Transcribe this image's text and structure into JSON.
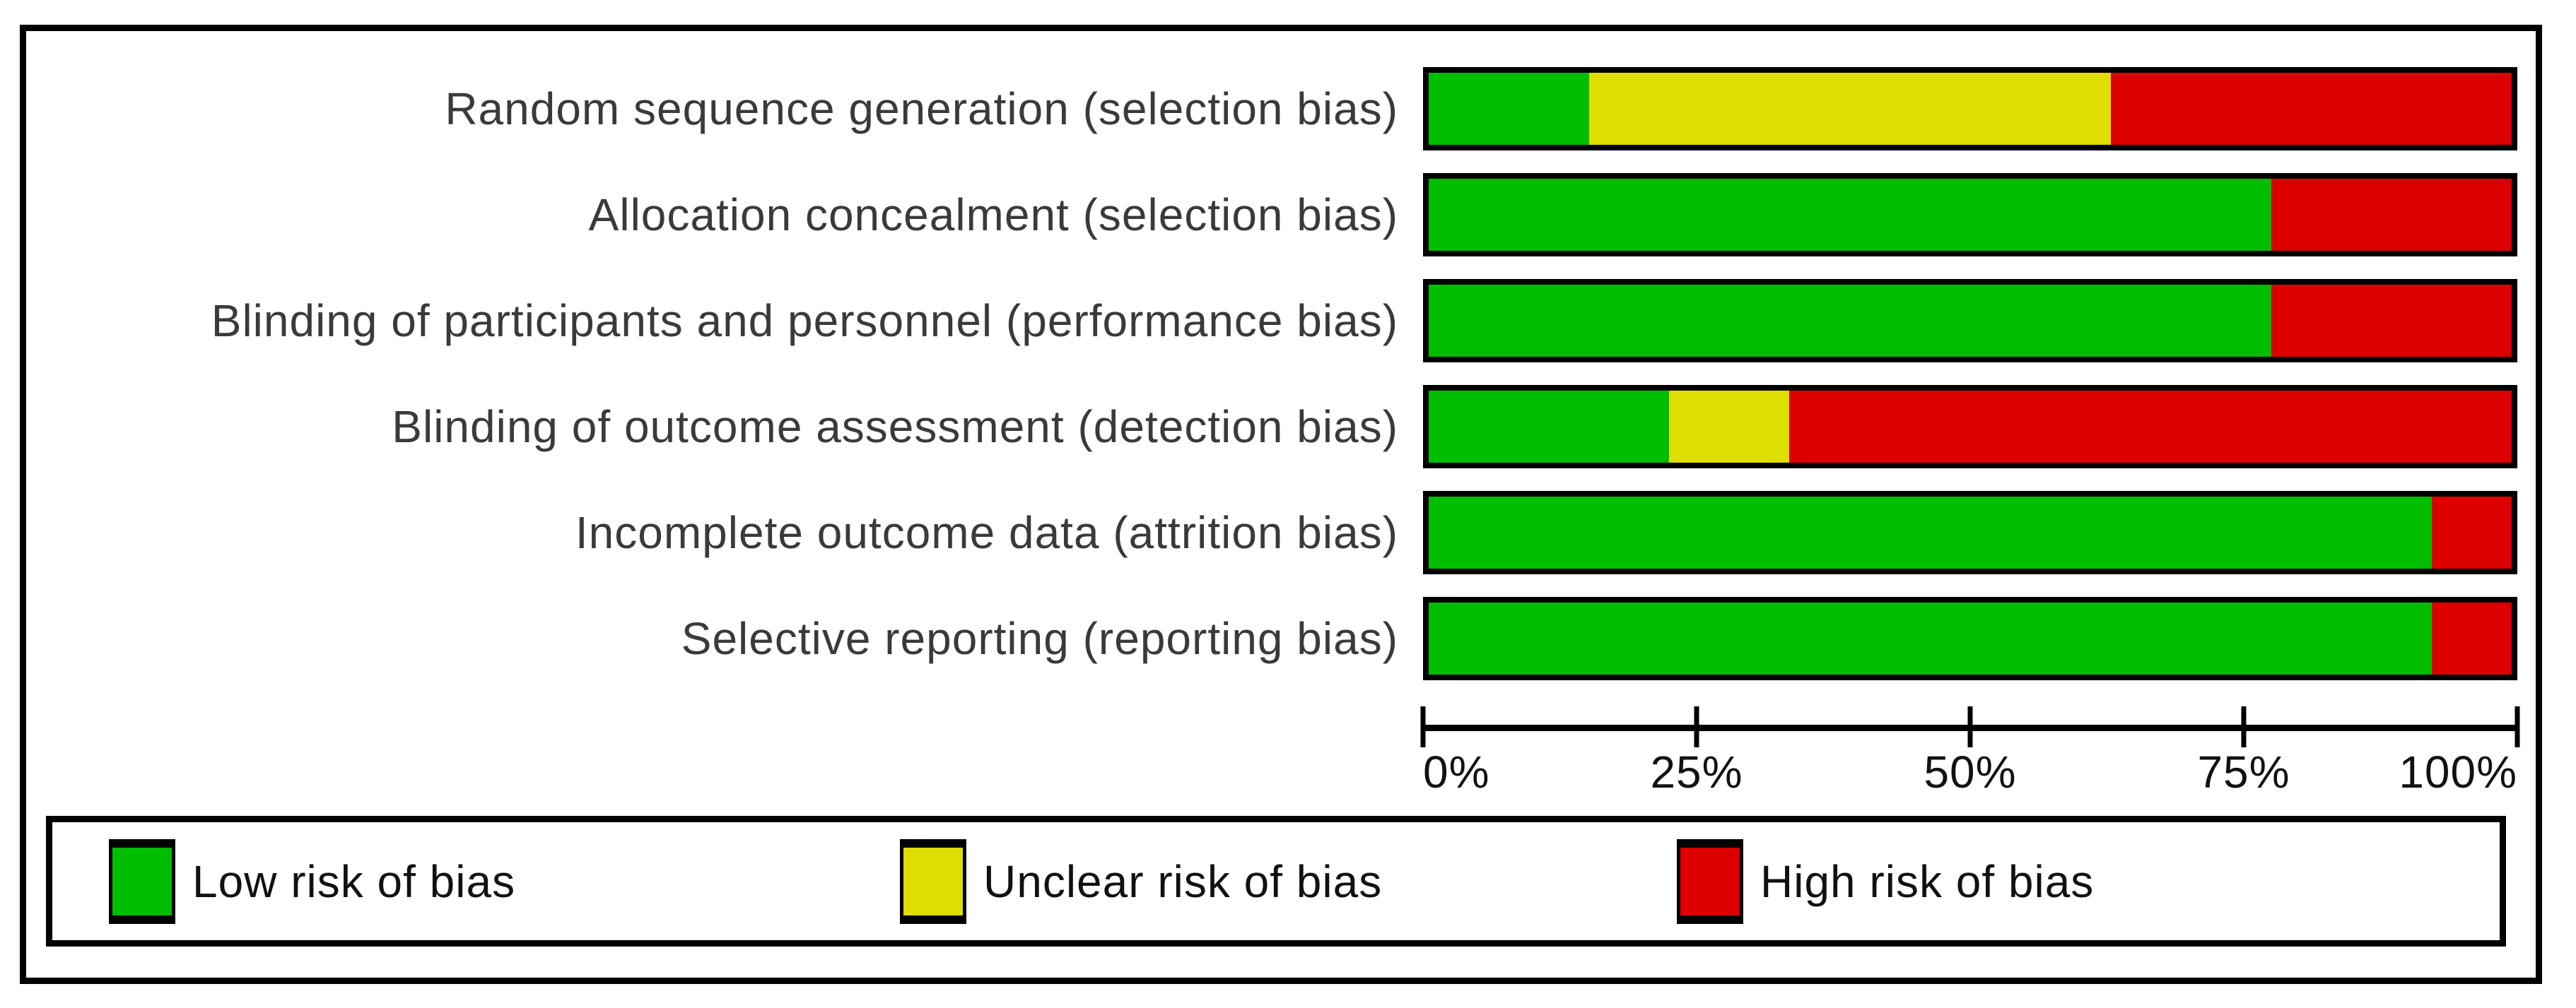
{
  "colors": {
    "low": "#00BD00",
    "unclear": "#DEDE00",
    "high": "#DD0000",
    "border": "#000000",
    "row_label_text": "#3a3a3a",
    "axis_text": "#111111"
  },
  "chart_data": {
    "type": "bar",
    "orientation": "horizontal_stacked",
    "categories": [
      "Random sequence generation (selection bias)",
      "Allocation concealment (selection bias)",
      "Blinding of participants and personnel (performance bias)",
      "Blinding of outcome assessment (detection bias)",
      "Incomplete outcome data (attrition bias)",
      "Selective reporting (reporting bias)"
    ],
    "series": [
      {
        "name": "Low risk of bias",
        "color_key": "low",
        "values": [
          14.8,
          77.8,
          77.8,
          22.2,
          92.6,
          92.6
        ]
      },
      {
        "name": "Unclear risk of bias",
        "color_key": "unclear",
        "values": [
          48.2,
          0,
          0,
          11.1,
          0,
          0
        ]
      },
      {
        "name": "High risk of bias",
        "color_key": "high",
        "values": [
          37.0,
          22.2,
          22.2,
          66.7,
          7.4,
          7.4
        ]
      }
    ],
    "xlim": [
      0,
      100
    ],
    "x_tick_labels": [
      "0%",
      "25%",
      "50%",
      "75%",
      "100%"
    ],
    "grid": false,
    "legend_position": "bottom"
  },
  "legend": {
    "items": [
      {
        "label": "Low risk of bias",
        "color_key": "low"
      },
      {
        "label": "Unclear risk of bias",
        "color_key": "unclear"
      },
      {
        "label": "High risk of bias",
        "color_key": "high"
      }
    ]
  }
}
